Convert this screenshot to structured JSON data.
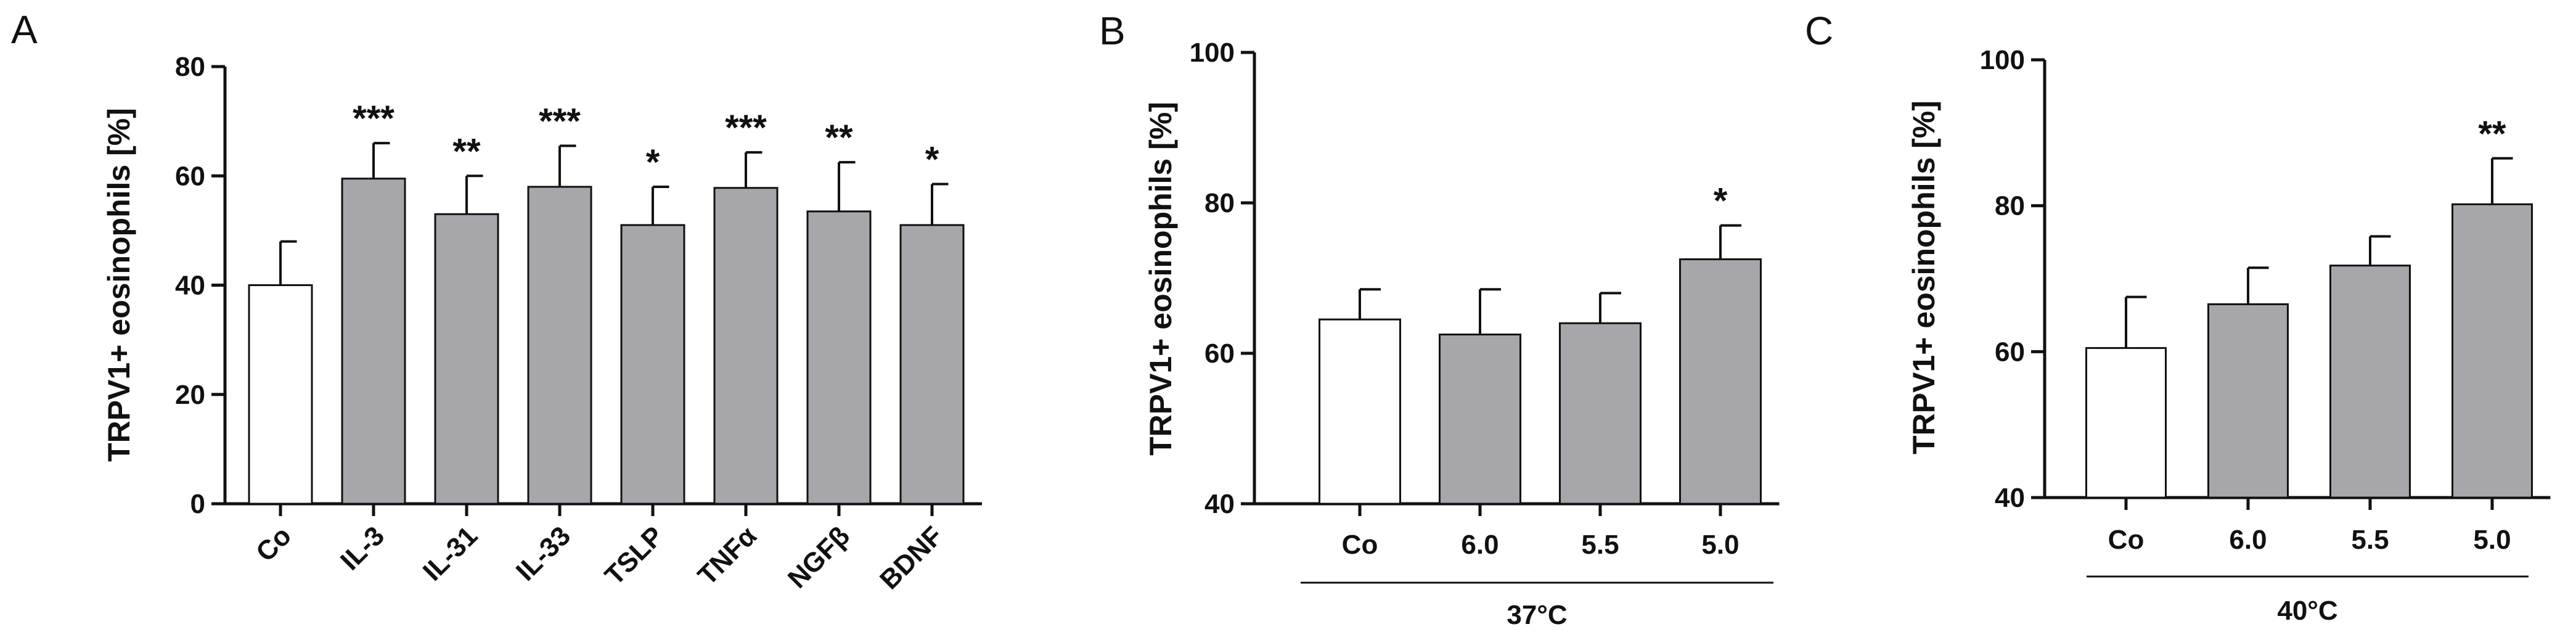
{
  "chart_data": [
    {
      "panel": "A",
      "type": "bar",
      "ylabel": "TRPV1+ eosinophils [%]",
      "ylim": [
        0,
        80
      ],
      "yticks": [
        0,
        20,
        40,
        60,
        80
      ],
      "categories": [
        "Co",
        "IL-3",
        "IL-31",
        "IL-33",
        "TSLP",
        "TNFα",
        "NGFβ",
        "BDNF"
      ],
      "values": [
        40,
        59.5,
        53,
        58,
        51,
        57.8,
        53.5,
        51
      ],
      "errors": [
        8,
        6.5,
        7,
        7.5,
        7,
        6.5,
        9,
        7.5
      ],
      "significance": [
        "",
        "***",
        "**",
        "***",
        "*",
        "***",
        "**",
        "*"
      ],
      "colors": [
        "#ffffff",
        "#a6a6ab",
        "#a6a6ab",
        "#a6a6ab",
        "#a6a6ab",
        "#a6a6ab",
        "#a6a6ab",
        "#a6a6ab"
      ],
      "group_label": ""
    },
    {
      "panel": "B",
      "type": "bar",
      "ylabel": "TRPV1+ eosinophils [%]",
      "ylim": [
        40,
        100
      ],
      "yticks": [
        40,
        60,
        80,
        100
      ],
      "categories": [
        "Co",
        "6.0",
        "5.5",
        "5.0"
      ],
      "values": [
        64.5,
        62.5,
        64,
        72.5
      ],
      "errors": [
        4,
        6,
        4,
        4.5
      ],
      "significance": [
        "",
        "",
        "",
        "*"
      ],
      "colors": [
        "#ffffff",
        "#a6a6ab",
        "#a6a6ab",
        "#a6a6ab"
      ],
      "group_label": "37°C"
    },
    {
      "panel": "C",
      "type": "bar",
      "ylabel": "TRPV1+ eosinophils [%]",
      "ylim": [
        40,
        100
      ],
      "yticks": [
        40,
        60,
        80,
        100
      ],
      "categories": [
        "Co",
        "6.0",
        "5.5",
        "5.0"
      ],
      "values": [
        60.5,
        66.5,
        71.8,
        80.2
      ],
      "errors": [
        7,
        5,
        4,
        6.3
      ],
      "significance": [
        "",
        "",
        "",
        "**"
      ],
      "colors": [
        "#ffffff",
        "#a6a6ab",
        "#a6a6ab",
        "#a6a6ab"
      ],
      "group_label": "40°C"
    }
  ]
}
